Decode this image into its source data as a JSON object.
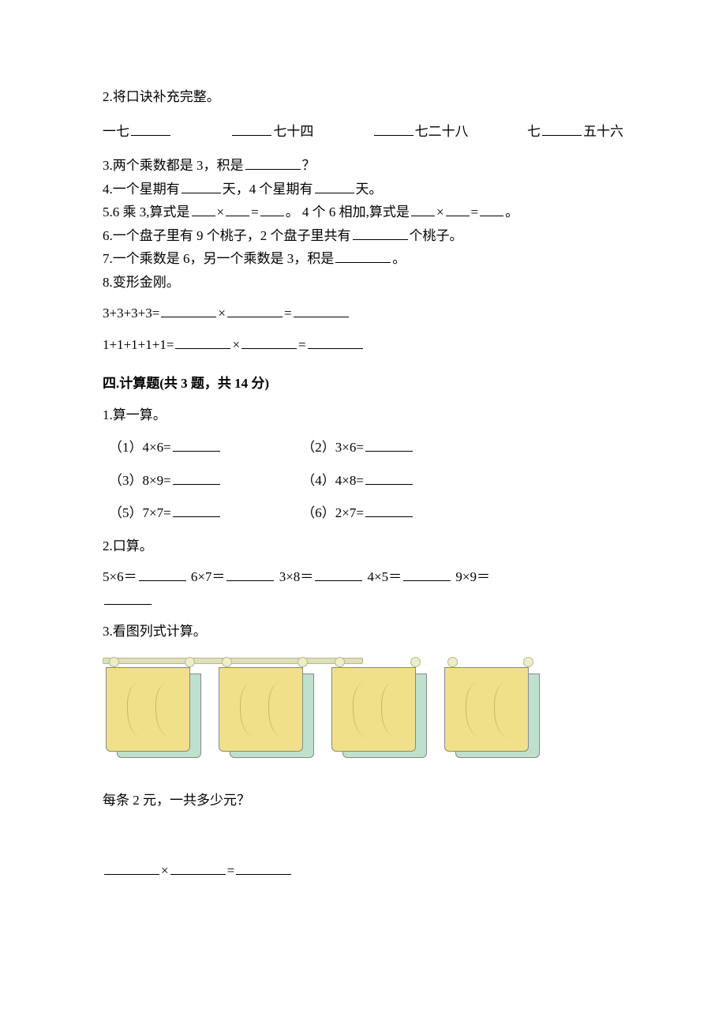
{
  "colors": {
    "text": "#000000",
    "background": "#ffffff",
    "blank_line": "#000000",
    "towel_front": "#f0e08a",
    "towel_back": "#bfe0cf",
    "towel_fold": "#c9b860",
    "bar_fill": "#dfe0b8",
    "bar_border": "#b8b88a"
  },
  "q2": {
    "prompt": "2.将口诀补充完整。",
    "items": [
      {
        "pre": "一七",
        "post": ""
      },
      {
        "pre": "",
        "post": "七十四"
      },
      {
        "pre": "",
        "post": "七二十八"
      },
      {
        "pre": "七",
        "post": "五十六"
      }
    ]
  },
  "q3": "3.两个乘数都是 3，积是",
  "q3_tail": "？",
  "q4_a": "4.一个星期有",
  "q4_b": "天，4 个星期有",
  "q4_c": "天。",
  "q5_a": "5.6 乘 3,算式是",
  "q5_b": "×",
  "q5_c": "=",
  "q5_d": "。  4 个 6 相加,算式是",
  "q5_e": "×",
  "q5_f": "=",
  "q5_g": "。",
  "q6_a": "6.一个盘子里有 9 个桃子，2 个盘子里共有",
  "q6_b": "个桃子。",
  "q7_a": "7.一个乘数是 6，另一个乘数是 3，积是",
  "q7_b": "。",
  "q8": "8.变形金刚。",
  "q8_eq1_lhs": "3+3+3+3=",
  "q8_eq2_lhs": "1+1+1+1+1=",
  "q8_times": "×",
  "q8_eq": "=",
  "section4": "四.计算题(共 3 题，共 14 分)",
  "s4q1": "1.算一算。",
  "s4q1_items": [
    {
      "n": "（1）",
      "expr": "4×6="
    },
    {
      "n": "（2）",
      "expr": "3×6="
    },
    {
      "n": "（3）",
      "expr": "8×9="
    },
    {
      "n": "（4）",
      "expr": "4×8="
    },
    {
      "n": "（5）",
      "expr": "7×7="
    },
    {
      "n": "（6）",
      "expr": "2×7="
    }
  ],
  "s4q2": "2.口算。",
  "s4q2_items": [
    "5×6＝",
    "6×7＝",
    "3×8＝",
    "4×5＝",
    "9×9＝"
  ],
  "s4q3": "3.看图列式计算。",
  "s4q3_info": {
    "towel_groups": 4,
    "front_color": "#f0e08a",
    "back_color": "#bfe0cf",
    "bar_color": "#dfe0b8"
  },
  "s4q3_text": "每条 2 元，一共多少元？",
  "s4q3_times": "×",
  "s4q3_eq": "="
}
